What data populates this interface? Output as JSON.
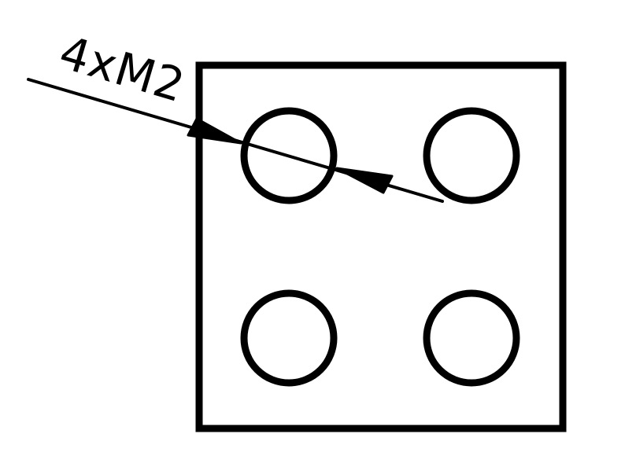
{
  "drawing": {
    "callout_label": "4xM2",
    "stroke_color": "#000000",
    "background_color": "#ffffff",
    "hole_count": 4
  }
}
